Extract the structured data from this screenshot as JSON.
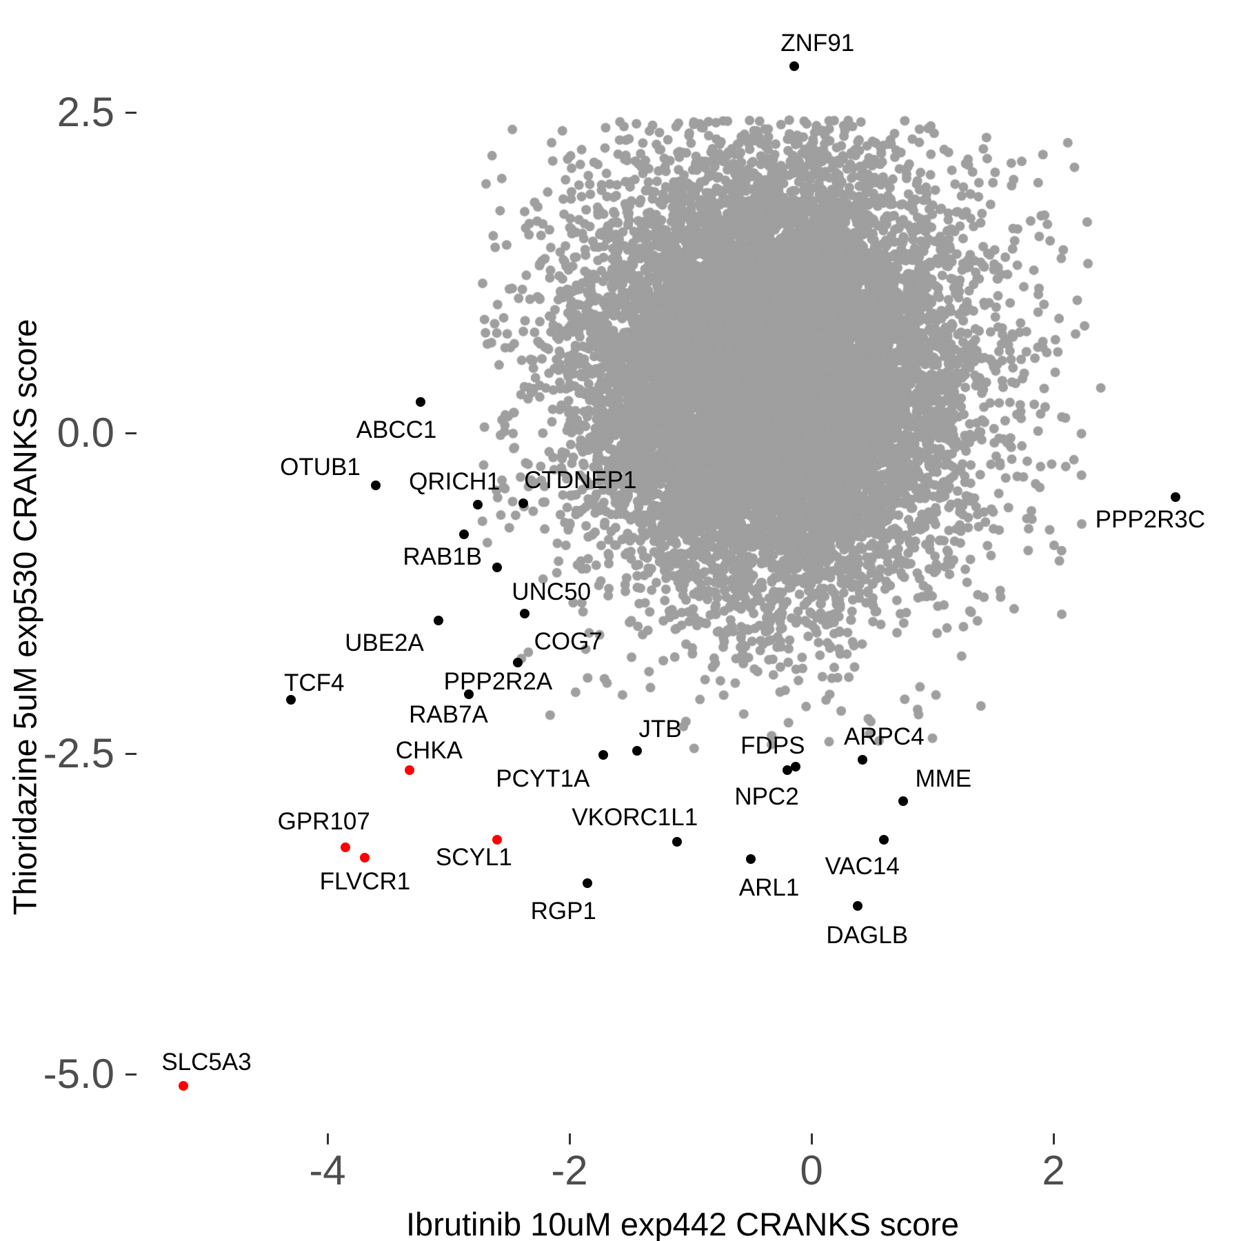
{
  "colors": {
    "background": "#ffffff",
    "cloud_gray": "#9f9f9f",
    "highlight_black": "#000000",
    "highlight_red": "#ff0000",
    "tick_label": "#4d4d4d",
    "tick_mark": "#333333",
    "axis_title": "#000000"
  },
  "chart_data": {
    "type": "scatter",
    "title": "",
    "xlabel": "Ibrutinib 10uM exp442 CRANKS score",
    "ylabel": "Thioridazine 5uM exp530 CRANKS score",
    "grid": false,
    "legend": "none",
    "x_axis": {
      "range": [
        -5.6,
        3.55
      ],
      "ticks": [
        {
          "value": -4,
          "label": "-4"
        },
        {
          "value": -2,
          "label": "-2"
        },
        {
          "value": 0,
          "label": "0"
        },
        {
          "value": 2,
          "label": "2"
        }
      ]
    },
    "y_axis": {
      "range": [
        -5.65,
        3.25
      ],
      "ticks": [
        {
          "value": 2.5,
          "label": "2.5"
        },
        {
          "value": 0.0,
          "label": "0.0"
        },
        {
          "value": -2.5,
          "label": "-2.5"
        },
        {
          "value": -5.0,
          "label": "-5.0"
        }
      ]
    },
    "labeled_points": [
      {
        "gene": "ZNF91",
        "x": -0.14,
        "y": 2.86,
        "color": "black",
        "label_x": 0.05,
        "label_y": 3.04
      },
      {
        "gene": "ABCC1",
        "x": -3.23,
        "y": 0.24,
        "color": "black",
        "label_x": -3.43,
        "label_y": 0.02
      },
      {
        "gene": "OTUB1",
        "x": -3.6,
        "y": -0.41,
        "color": "black",
        "label_x": -4.06,
        "label_y": -0.27
      },
      {
        "gene": "QRICH1",
        "x": -2.76,
        "y": -0.56,
        "color": "black",
        "label_x": -2.95,
        "label_y": -0.38
      },
      {
        "gene": "CTDNEP1",
        "x": -2.38,
        "y": -0.55,
        "color": "black",
        "label_x": -1.91,
        "label_y": -0.37
      },
      {
        "gene": "RAB1B",
        "x": -2.87,
        "y": -0.79,
        "color": "black",
        "label_x": -3.05,
        "label_y": -0.97
      },
      {
        "gene": "RAB7A",
        "x": -2.6,
        "y": -1.05,
        "color": "black",
        "label_x": -3.0,
        "label_y": -2.2
      },
      {
        "gene": "UNC50",
        "x": -2.37,
        "y": -1.41,
        "color": "black",
        "label_x": -2.15,
        "label_y": -1.24
      },
      {
        "gene": "UBE2A",
        "x": -3.08,
        "y": -1.46,
        "color": "black",
        "label_x": -3.53,
        "label_y": -1.64
      },
      {
        "gene": "COG7",
        "x": -2.43,
        "y": -1.79,
        "color": "black",
        "label_x": -2.01,
        "label_y": -1.63
      },
      {
        "gene": "TCF4",
        "x": -4.3,
        "y": -2.08,
        "color": "black",
        "label_x": -4.11,
        "label_y": -1.95
      },
      {
        "gene": "PPP2R2A",
        "x": -2.83,
        "y": -2.04,
        "color": "black",
        "label_x": -2.59,
        "label_y": -1.94
      },
      {
        "gene": "CHKA",
        "x": -3.32,
        "y": -2.63,
        "color": "red",
        "label_x": -3.16,
        "label_y": -2.48
      },
      {
        "gene": "PCYT1A",
        "x": -1.72,
        "y": -2.51,
        "color": "black",
        "label_x": -2.22,
        "label_y": -2.7
      },
      {
        "gene": "JTB",
        "x": -1.44,
        "y": -2.48,
        "color": "black",
        "label_x": -1.25,
        "label_y": -2.31
      },
      {
        "gene": "FDPS",
        "x": -0.13,
        "y": -2.6,
        "color": "black",
        "label_x": -0.32,
        "label_y": -2.44
      },
      {
        "gene": "NPC2",
        "x": -0.2,
        "y": -2.63,
        "color": "black",
        "label_x": -0.37,
        "label_y": -2.84
      },
      {
        "gene": "ARPC4",
        "x": 0.42,
        "y": -2.55,
        "color": "black",
        "label_x": 0.6,
        "label_y": -2.37
      },
      {
        "gene": "MME",
        "x": 0.76,
        "y": -2.87,
        "color": "black",
        "label_x": 1.09,
        "label_y": -2.7
      },
      {
        "gene": "VKORC1L1",
        "x": -1.11,
        "y": -3.19,
        "color": "black",
        "label_x": -1.46,
        "label_y": -3.0
      },
      {
        "gene": "GPR107",
        "x": -3.85,
        "y": -3.23,
        "color": "red",
        "label_x": -4.03,
        "label_y": -3.03
      },
      {
        "gene": "FLVCR1",
        "x": -3.69,
        "y": -3.31,
        "color": "red",
        "label_x": -3.69,
        "label_y": -3.5
      },
      {
        "gene": "SCYL1",
        "x": -2.6,
        "y": -3.17,
        "color": "red",
        "label_x": -2.79,
        "label_y": -3.31
      },
      {
        "gene": "VAC14",
        "x": 0.6,
        "y": -3.17,
        "color": "black",
        "label_x": 0.42,
        "label_y": -3.38
      },
      {
        "gene": "ARL1",
        "x": -0.5,
        "y": -3.32,
        "color": "black",
        "label_x": -0.35,
        "label_y": -3.55
      },
      {
        "gene": "RGP1",
        "x": -1.85,
        "y": -3.51,
        "color": "black",
        "label_x": -2.05,
        "label_y": -3.73
      },
      {
        "gene": "DAGLB",
        "x": 0.38,
        "y": -3.69,
        "color": "black",
        "label_x": 0.46,
        "label_y": -3.92
      },
      {
        "gene": "PPP2R3C",
        "x": 3.01,
        "y": -0.5,
        "color": "black",
        "label_x": 2.8,
        "label_y": -0.68
      },
      {
        "gene": "SLC5A3",
        "x": -5.19,
        "y": -5.09,
        "color": "red",
        "label_x": -5.0,
        "label_y": -4.91
      }
    ],
    "isolated_gray_points": [
      [
        -2.42,
        1.05
      ],
      [
        -2.3,
        -0.61
      ],
      [
        -2.1,
        -0.86
      ],
      [
        -2.09,
        -1.0
      ],
      [
        -2.34,
        -1.71
      ],
      [
        -1.85,
        -1.91
      ],
      [
        -1.69,
        -1.95
      ],
      [
        -2.16,
        -2.2
      ],
      [
        -0.97,
        -2.46
      ],
      [
        0.49,
        -2.25
      ],
      [
        1.0,
        -2.38
      ]
    ],
    "background_cloud": {
      "description": "Dense unlabeled gene cloud (~18k genes), rendered as a seeded Gaussian mixture approximation",
      "center": [
        -0.33,
        0.45
      ],
      "core": {
        "n": 13000,
        "sd_x": 0.72,
        "sd_y": 0.78
      },
      "halo": {
        "n": 1300,
        "sd_x": 1.1,
        "sd_y": 1.15
      },
      "clip": {
        "x_min": -2.72,
        "x_max": 2.42,
        "y_min": -2.54,
        "y_max": 2.44
      },
      "seed": 7,
      "point_radius_px": 7
    }
  }
}
